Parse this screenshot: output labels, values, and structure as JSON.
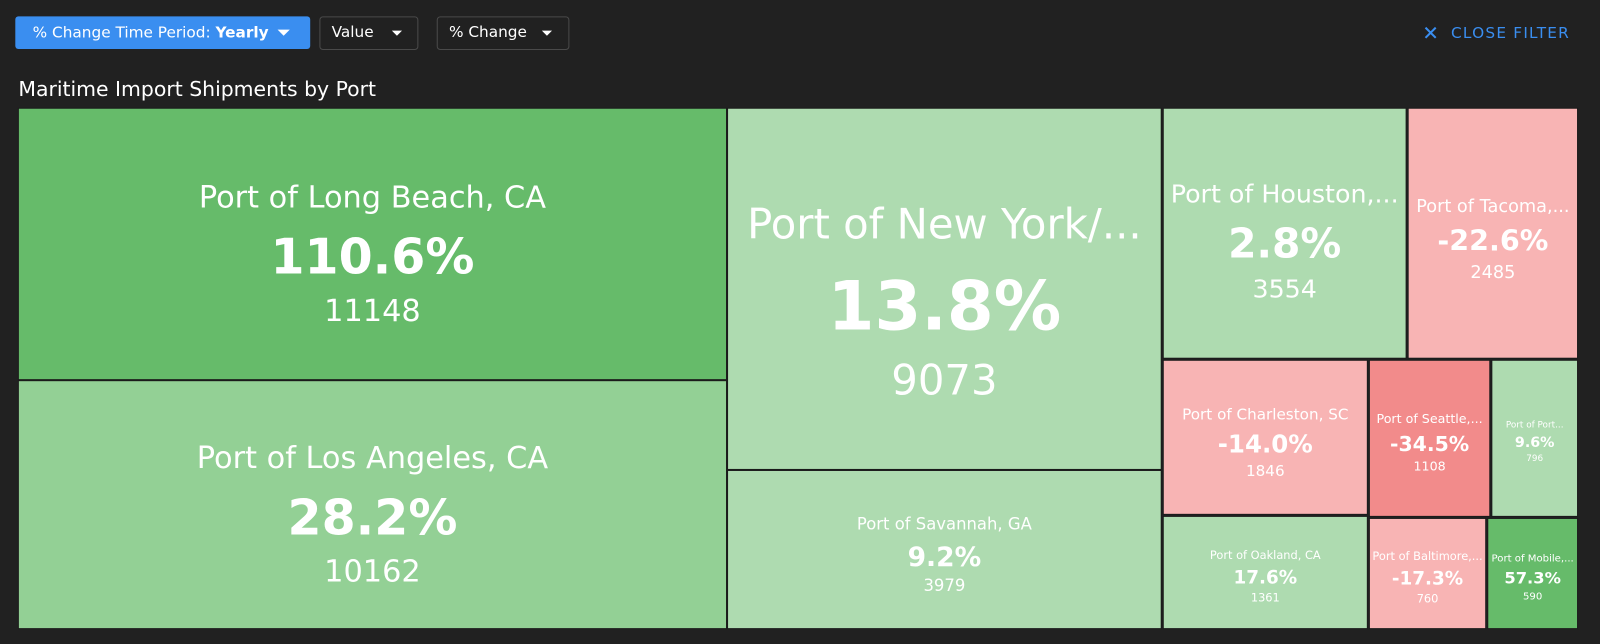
{
  "toolbar": {
    "period_label": "% Change Time Period:",
    "period_value": "Yearly",
    "size_dropdown": "Value",
    "color_dropdown": "% Change",
    "close": "CLOSE FILTER"
  },
  "chart_data": {
    "type": "treemap",
    "title": "Maritime Import Shipments by Port",
    "categories": [
      "Port of Long Beach, CA",
      "Port of Los Angeles, CA",
      "Port of New York/...",
      "Port of Savannah, GA",
      "Port of Houston,...",
      "Port of Tacoma,...",
      "Port of Charleston, SC",
      "Port of Seattle,...",
      "Port of Port...",
      "Port of Oakland, CA",
      "Port of Baltimore,...",
      "Port of Mobile,..."
    ],
    "values": [
      11148,
      10162,
      9073,
      3979,
      3554,
      2485,
      1846,
      1108,
      796,
      1361,
      760,
      590
    ],
    "changes": [
      110.6,
      28.2,
      13.8,
      9.2,
      2.8,
      -22.6,
      -14.0,
      -34.5,
      9.6,
      17.6,
      -17.3,
      57.3
    ],
    "change_labels": [
      "110.6%",
      "28.2%",
      "13.8%",
      "9.2%",
      "2.8%",
      "-22.6%",
      "-14.0%",
      "-34.5%",
      "9.6%",
      "17.6%",
      "-17.3%",
      "57.3%"
    ]
  }
}
